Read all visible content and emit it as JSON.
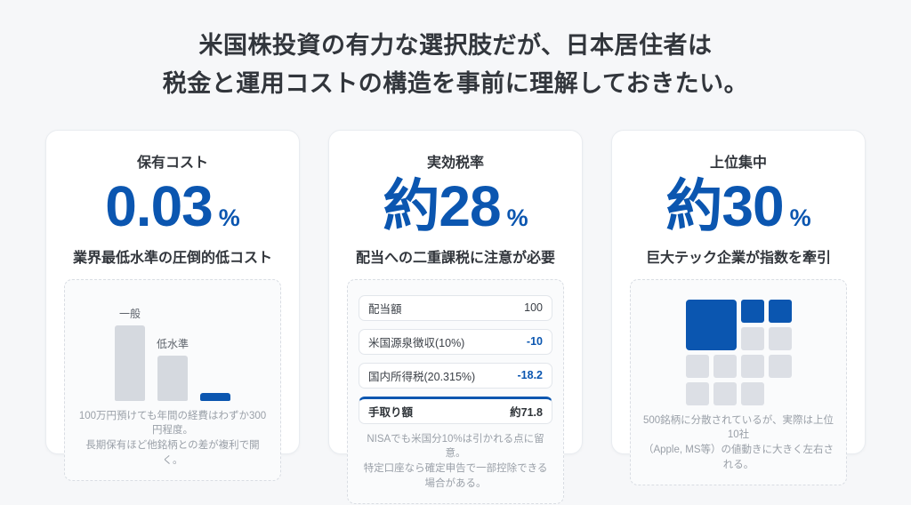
{
  "page": {
    "title_line1": "米国株投資の有力な選択肢だが、日本居住者は",
    "title_line2": "税金と運用コストの構造を事前に理解しておきたい。"
  },
  "colors": {
    "accent_blue": "#0b56b0",
    "bar_gray": "#d5d9df",
    "tile_gray": "#dcdfe5",
    "page_background": "#f6f7f9",
    "note_gray": "#9aa0a8"
  },
  "cards": [
    {
      "label": "保有コスト",
      "value": "0.03",
      "unit": "%",
      "subtitle": "業界最低水準の圧倒的低コスト",
      "note_line1": "100万円預けても年間の経費はわずか300円程度。",
      "note_line2": "長期保有ほど他銘柄との差が複利で開く。"
    },
    {
      "label": "実効税率",
      "value": "約28",
      "unit": "%",
      "subtitle": "配当への二重課税に注意が必要",
      "note_line1": "NISAでも米国分10%は引かれる点に留意。",
      "note_line2": "特定口座なら確定申告で一部控除できる場合がある。"
    },
    {
      "label": "上位集中",
      "value": "約30",
      "unit": "%",
      "subtitle": "巨大テック企業が指数を牽引",
      "note_line1": "500銘柄に分散されているが、実際は上位10社",
      "note_line2": "（Apple, MS等）の値動きに大きく左右される。"
    }
  ],
  "chart_data": [
    {
      "type": "bar",
      "title": "保有コスト",
      "categories": [
        "一般",
        "低水準",
        ""
      ],
      "values": [
        100,
        60,
        10
      ],
      "value_note": "相対値（数値軸なし・最小の青バーが0.03%水準）",
      "bar_colors": [
        "#d5d9df",
        "#d5d9df",
        "#0b56b0"
      ],
      "legend": "off",
      "grid": "off"
    },
    {
      "type": "table",
      "title": "実効税率",
      "rows": [
        {
          "label": "配当額",
          "value": "100"
        },
        {
          "label": "米国源泉徴収(10%)",
          "value": "-10"
        },
        {
          "label": "国内所得税(20.315%)",
          "value": "-18.2"
        },
        {
          "label": "手取り額",
          "value": "約71.8"
        }
      ]
    },
    {
      "type": "treemap",
      "title": "上位集中",
      "blue_tiles": 3,
      "gray_tiles": 9,
      "cells": [
        "big-blue",
        "blue",
        "blue",
        "gray",
        "gray",
        "gray",
        "gray",
        "gray",
        "gray",
        "gray",
        "gray",
        "gray"
      ]
    }
  ]
}
